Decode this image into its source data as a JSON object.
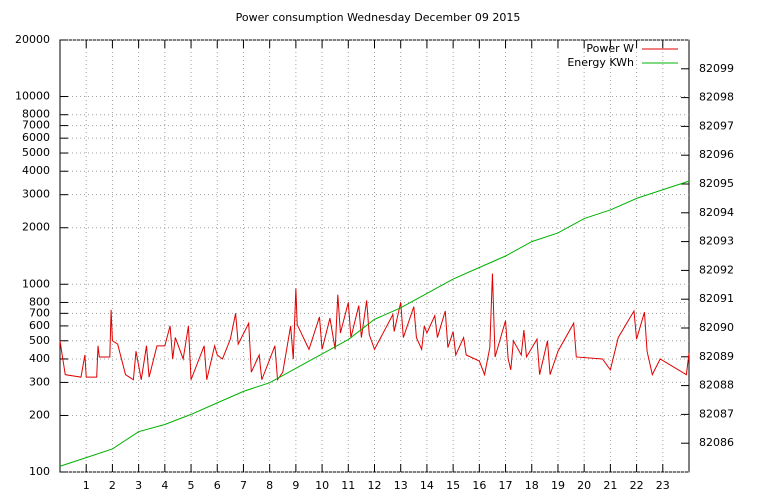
{
  "chart_data": {
    "type": "line",
    "title": "Power consumption Wednesday December 09 2015",
    "xlim": [
      0,
      24
    ],
    "xticks": [
      1,
      2,
      3,
      4,
      5,
      6,
      7,
      8,
      9,
      10,
      11,
      12,
      13,
      14,
      15,
      16,
      17,
      18,
      19,
      20,
      21,
      22,
      23
    ],
    "ylim": [
      100,
      20000
    ],
    "yticks": [
      100,
      200,
      300,
      400,
      500,
      600,
      700,
      800,
      1000,
      2000,
      3000,
      4000,
      5000,
      6000,
      7000,
      8000,
      10000,
      20000
    ],
    "log_y": true,
    "y2lim": [
      82085,
      82100
    ],
    "y2ticks": [
      82086,
      82087,
      82088,
      82089,
      82090,
      82091,
      82092,
      82093,
      82094,
      82095,
      82096,
      82097,
      82098,
      82099
    ],
    "grid": true,
    "legend": "top-right",
    "series": [
      {
        "name": "Power W",
        "color": "#e00000",
        "x": [
          0,
          0.2,
          0.8,
          0.95,
          1.0,
          1.4,
          1.45,
          1.5,
          1.9,
          1.95,
          2.0,
          2.2,
          2.5,
          2.8,
          2.9,
          3.1,
          3.3,
          3.4,
          3.7,
          4.0,
          4.2,
          4.3,
          4.4,
          4.7,
          4.9,
          5.0,
          5.5,
          5.6,
          5.9,
          6.0,
          6.2,
          6.5,
          6.7,
          6.8,
          7.2,
          7.3,
          7.6,
          7.7,
          8.2,
          8.3,
          8.5,
          8.8,
          8.9,
          9.0,
          9.05,
          9.5,
          9.9,
          10.0,
          10.3,
          10.5,
          10.6,
          10.7,
          11.0,
          11.1,
          11.4,
          11.5,
          11.7,
          11.8,
          12.0,
          12.7,
          12.75,
          13.0,
          13.1,
          13.5,
          13.6,
          13.8,
          13.9,
          14.0,
          14.3,
          14.4,
          14.7,
          14.8,
          15.0,
          15.1,
          15.4,
          15.5,
          16.0,
          16.2,
          16.4,
          16.5,
          16.6,
          17.0,
          17.1,
          17.2,
          17.3,
          17.6,
          17.7,
          17.8,
          18.2,
          18.3,
          18.6,
          18.7,
          19.0,
          19.6,
          19.7,
          20.7,
          21.0,
          21.3,
          21.9,
          22.0,
          22.3,
          22.4,
          22.6,
          22.9,
          23.9,
          24
        ],
        "values": [
          500,
          330,
          320,
          420,
          320,
          320,
          470,
          410,
          410,
          730,
          500,
          480,
          330,
          310,
          440,
          310,
          470,
          320,
          470,
          470,
          600,
          400,
          520,
          400,
          600,
          310,
          470,
          310,
          470,
          420,
          400,
          510,
          700,
          480,
          620,
          340,
          420,
          310,
          470,
          310,
          340,
          600,
          400,
          950,
          610,
          450,
          670,
          450,
          660,
          450,
          880,
          550,
          800,
          520,
          770,
          520,
          820,
          540,
          450,
          690,
          560,
          800,
          520,
          760,
          520,
          450,
          600,
          550,
          680,
          520,
          720,
          460,
          560,
          420,
          520,
          420,
          390,
          330,
          460,
          1140,
          410,
          640,
          400,
          350,
          500,
          420,
          570,
          410,
          510,
          330,
          500,
          330,
          440,
          620,
          410,
          400,
          350,
          520,
          720,
          510,
          710,
          440,
          330,
          400,
          330,
          430
        ]
      },
      {
        "name": "Energy KWh",
        "color": "#00b000",
        "axis": "y2",
        "x": [
          0,
          1,
          2,
          3,
          4,
          5,
          6,
          7,
          8,
          9,
          10,
          11,
          12,
          13,
          14,
          15,
          16,
          17,
          18,
          19,
          20,
          21,
          22,
          23,
          24
        ],
        "values": [
          82085.2,
          82085.5,
          82085.8,
          82086.4,
          82086.65,
          82087.0,
          82087.4,
          82087.8,
          82088.1,
          82088.6,
          82089.1,
          82089.6,
          82090.3,
          82090.7,
          82091.2,
          82091.7,
          82092.1,
          82092.5,
          82093.0,
          82093.3,
          82093.8,
          82094.1,
          82094.5,
          82094.8,
          82095.1
        ]
      }
    ]
  }
}
